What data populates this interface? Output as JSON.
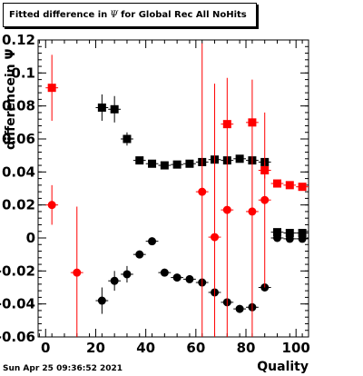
{
  "title": {
    "prefix": "Fitted difference in",
    "symbol": "Ψ",
    "suffix": "for Global Rec All NoHits"
  },
  "footer": {
    "timestamp": "Sun Apr 25 09:36:52 2021"
  },
  "chart_data": {
    "type": "scatter",
    "xlabel": "Quality",
    "ylabel": "differencein  Ψ",
    "xlim": [
      -3,
      105
    ],
    "ylim": [
      -0.06,
      0.12
    ],
    "xticks": [
      0,
      20,
      40,
      60,
      80,
      100
    ],
    "yticks": [
      -0.06,
      -0.04,
      -0.02,
      0,
      0.02,
      0.04,
      0.06,
      0.08,
      0.1,
      0.12
    ],
    "ytick_labels": [
      "-0.06",
      "-0.04",
      "-0.02",
      "0",
      "0.02",
      "0.04",
      "0.06",
      "0.08",
      "0.1",
      "0.12"
    ],
    "grid": false,
    "series": [
      {
        "marker": "square",
        "color": "#000000",
        "x": [
          22.5,
          27.5,
          32.5,
          37.5,
          42.5,
          47.5,
          52.5,
          57.5,
          62.5,
          67.5,
          72.5,
          77.5,
          82.5,
          87.5,
          92.5,
          97.5,
          102.5
        ],
        "y": [
          0.079,
          0.078,
          0.06,
          0.047,
          0.045,
          0.044,
          0.0445,
          0.045,
          0.046,
          0.0475,
          0.047,
          0.048,
          0.047,
          0.046,
          0.0035,
          0.003,
          0.003
        ],
        "yerr": [
          0.008,
          0.008,
          0.004,
          0.002,
          0.002,
          0.0015,
          0.0015,
          0.0015,
          0.0015,
          0.0015,
          0.0015,
          0.0015,
          0.0015,
          0.0015,
          0.0015,
          0.0015,
          0.0015
        ]
      },
      {
        "marker": "circle",
        "color": "#000000",
        "x": [
          22.5,
          27.5,
          32.5,
          37.5,
          42.5,
          47.5,
          52.5,
          57.5,
          62.5,
          67.5,
          72.5,
          77.5,
          82.5,
          87.5,
          92.5,
          97.5,
          102.5
        ],
        "y": [
          -0.038,
          -0.026,
          -0.022,
          -0.01,
          -0.002,
          -0.021,
          -0.024,
          -0.025,
          -0.027,
          -0.033,
          -0.039,
          -0.043,
          -0.042,
          -0.03,
          0.0,
          -0.0005,
          -0.0005
        ],
        "yerr": [
          0.008,
          0.006,
          0.005,
          0.002,
          0.001,
          0.001,
          0.001,
          0.001,
          0.002,
          0.002,
          0.002,
          0.002,
          0.002,
          0.001,
          0.0015,
          0.0015,
          0.0015
        ]
      },
      {
        "marker": "square",
        "color": "#ff0000",
        "x": [
          2.5,
          72.5,
          82.5,
          87.5,
          92.5,
          97.5,
          102.5
        ],
        "y": [
          0.091,
          0.069,
          0.07,
          0.041,
          0.033,
          0.032,
          0.031
        ],
        "yerr": [
          0.02,
          0.0,
          0.0,
          0.005,
          0.002,
          0.002,
          0.002
        ]
      },
      {
        "marker": "circle",
        "color": "#ff0000",
        "x": [
          2.5,
          12.5,
          62.5,
          67.5,
          72.5,
          82.5,
          87.5
        ],
        "y": [
          0.02,
          -0.021,
          0.028,
          0.0005,
          0.017,
          0.016,
          0.023
        ],
        "yerr": [
          0.012,
          0.04,
          0.09,
          0.093,
          0.08,
          0.08,
          0.053
        ]
      }
    ]
  }
}
